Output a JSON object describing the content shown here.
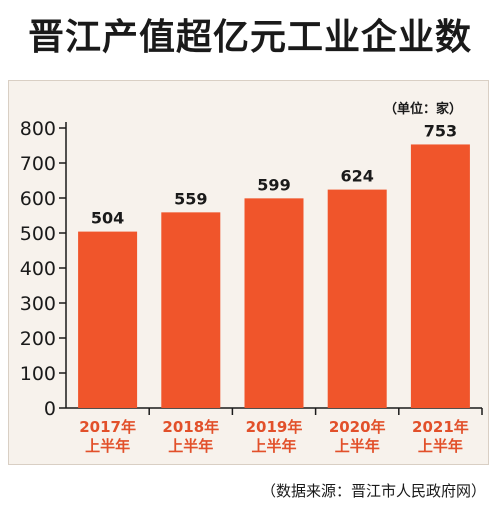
{
  "chart_data": {
    "type": "bar",
    "title": "晋江产值超亿元工业企业数",
    "unit_note": "（单位：家）",
    "source": "（数据来源：晋江市人民政府网）",
    "categories": [
      "2017年",
      "2018年",
      "2019年",
      "2020年",
      "2021年"
    ],
    "category_sublabels": [
      "上半年",
      "上半年",
      "上半年",
      "上半年",
      "上半年"
    ],
    "values": [
      504,
      559,
      599,
      624,
      753
    ],
    "yticks": [
      0,
      100,
      200,
      300,
      400,
      500,
      600,
      700,
      800
    ],
    "ylim": [
      0,
      800
    ],
    "bar_color": "#f0552b",
    "category_label_color": "#e2502a",
    "grid": false,
    "legend": "none"
  }
}
